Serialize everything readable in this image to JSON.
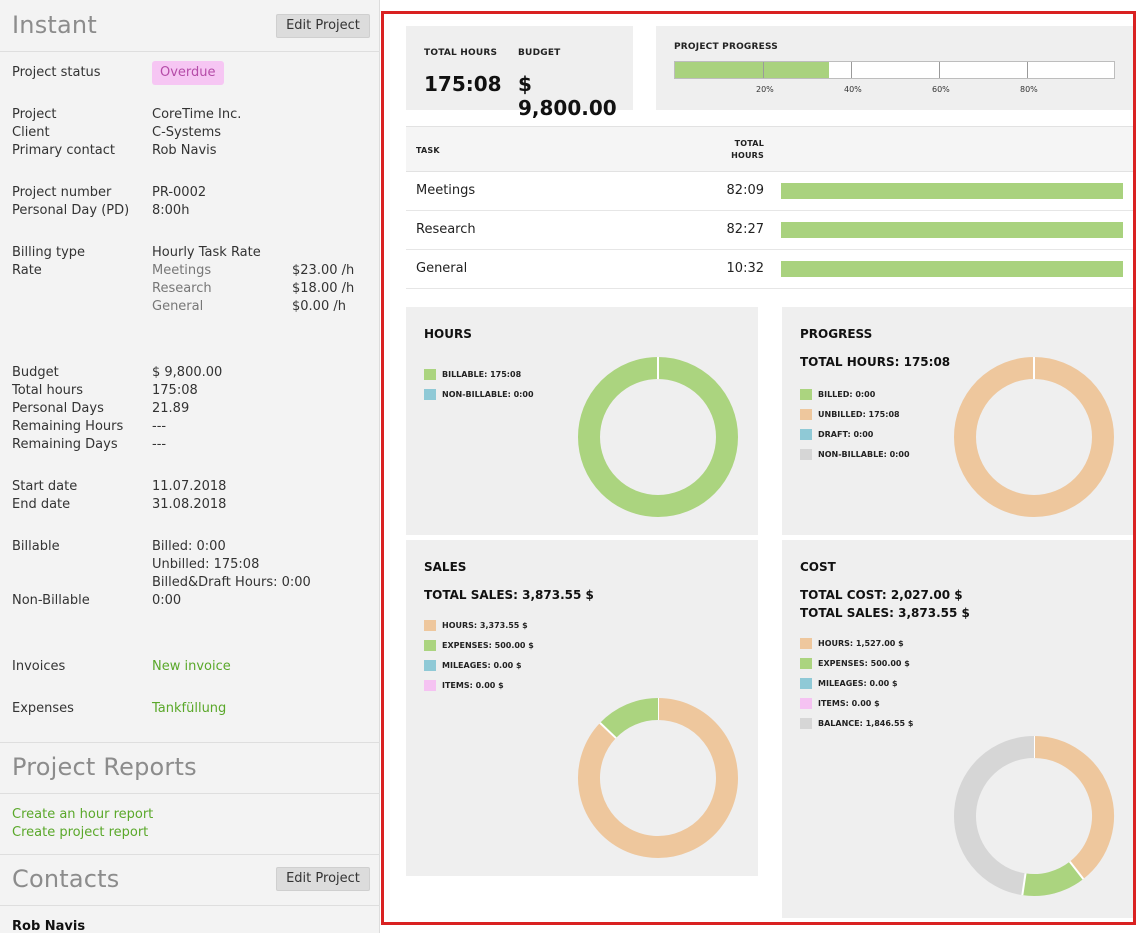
{
  "left": {
    "title": "Instant",
    "edit_label": "Edit Project",
    "status": {
      "label": "Project status",
      "value": "Overdue"
    },
    "project": {
      "label": "Project",
      "value": "CoreTime Inc."
    },
    "client": {
      "label": "Client",
      "value": "C-Systems"
    },
    "contact": {
      "label": "Primary contact",
      "value": "Rob Navis"
    },
    "number": {
      "label": "Project number",
      "value": "PR-0002"
    },
    "pd": {
      "label": "Personal Day (PD)",
      "value": "8:00h"
    },
    "billing": {
      "label": "Billing type",
      "value": "Hourly Task Rate"
    },
    "rate": {
      "label": "Rate",
      "items": [
        {
          "name": "Meetings",
          "value": "$23.00 /h"
        },
        {
          "name": "Research",
          "value": "$18.00 /h"
        },
        {
          "name": "General",
          "value": "$0.00 /h"
        }
      ]
    },
    "budget": {
      "label": "Budget",
      "value": "$ 9,800.00"
    },
    "total_hours": {
      "label": "Total hours",
      "value": "175:08"
    },
    "personal_days": {
      "label": "Personal Days",
      "value": "21.89"
    },
    "remaining_hours": {
      "label": "Remaining Hours",
      "value": "---"
    },
    "remaining_days": {
      "label": "Remaining Days",
      "value": "---"
    },
    "start": {
      "label": "Start date",
      "value": "11.07.2018"
    },
    "end": {
      "label": "End date",
      "value": "31.08.2018"
    },
    "billable": {
      "label": "Billable",
      "billed": "Billed: 0:00",
      "unbilled": "Unbilled: 175:08",
      "draft": "Billed&Draft Hours: 0:00"
    },
    "non_billable": {
      "label": "Non-Billable",
      "value": "0:00"
    },
    "invoices": {
      "label": "Invoices",
      "link": "New invoice"
    },
    "expenses": {
      "label": "Expenses",
      "link": "Tankfüllung"
    },
    "reports_title": "Project Reports",
    "report_links": [
      "Create an hour report",
      "Create project report"
    ],
    "contacts_title": "Contacts",
    "contacts_edit_label": "Edit Project",
    "contact_name": "Rob Navis"
  },
  "summary": {
    "total_hours_label": "TOTAL HOURS",
    "total_hours_value": "175:08",
    "budget_label": "BUDGET",
    "budget_value": "$ 9,800.00",
    "progress_label": "PROJECT PROGRESS",
    "progress_fraction": 0.35,
    "progress_ticks": [
      "20%",
      "40%",
      "60%",
      "80%"
    ]
  },
  "tasks": {
    "col_task": "TASK",
    "col_hours_1": "TOTAL",
    "col_hours_2": "HOURS",
    "rows": [
      {
        "name": "Meetings",
        "hours": "82:09"
      },
      {
        "name": "Research",
        "hours": "82:27"
      },
      {
        "name": "General",
        "hours": "10:32"
      }
    ]
  },
  "colors": {
    "green": "#abd47f",
    "peach": "#eec79d",
    "blue": "#8fc9d6",
    "pink": "#f5c2f2",
    "grey": "#d6d6d6"
  },
  "hours_card": {
    "title": "HOURS",
    "legend": [
      {
        "label": "BILLABLE: 175:08",
        "color": "#abd47f",
        "value": 175.13
      },
      {
        "label": "NON-BILLABLE: 0:00",
        "color": "#8fc9d6",
        "value": 0
      }
    ]
  },
  "progress_card": {
    "title": "PROGRESS",
    "total": "TOTAL HOURS: 175:08",
    "legend": [
      {
        "label": "BILLED: 0:00",
        "color": "#abd47f",
        "value": 0
      },
      {
        "label": "UNBILLED: 175:08",
        "color": "#eec79d",
        "value": 175.13
      },
      {
        "label": "DRAFT: 0:00",
        "color": "#8fc9d6",
        "value": 0
      },
      {
        "label": "NON-BILLABLE: 0:00",
        "color": "#d6d6d6",
        "value": 0
      }
    ]
  },
  "sales_card": {
    "title": "SALES",
    "total": "TOTAL SALES: 3,873.55 $",
    "legend": [
      {
        "label": "HOURS: 3,373.55 $",
        "color": "#eec79d",
        "value": 3373.55
      },
      {
        "label": "EXPENSES: 500.00 $",
        "color": "#abd47f",
        "value": 500
      },
      {
        "label": "MILEAGES: 0.00 $",
        "color": "#8fc9d6",
        "value": 0
      },
      {
        "label": "ITEMS: 0.00 $",
        "color": "#f5c2f2",
        "value": 0
      }
    ]
  },
  "cost_card": {
    "title": "COST",
    "total": "TOTAL COST: 2,027.00 $",
    "total2": "TOTAL SALES: 3,873.55 $",
    "legend": [
      {
        "label": "HOURS: 1,527.00 $",
        "color": "#eec79d",
        "value": 1527
      },
      {
        "label": "EXPENSES: 500.00 $",
        "color": "#abd47f",
        "value": 500
      },
      {
        "label": "MILEAGES: 0.00 $",
        "color": "#8fc9d6",
        "value": 0
      },
      {
        "label": "ITEMS: 0.00 $",
        "color": "#f5c2f2",
        "value": 0
      },
      {
        "label": "BALANCE: 1,846.55 $",
        "color": "#d6d6d6",
        "value": 1846.55
      }
    ]
  }
}
